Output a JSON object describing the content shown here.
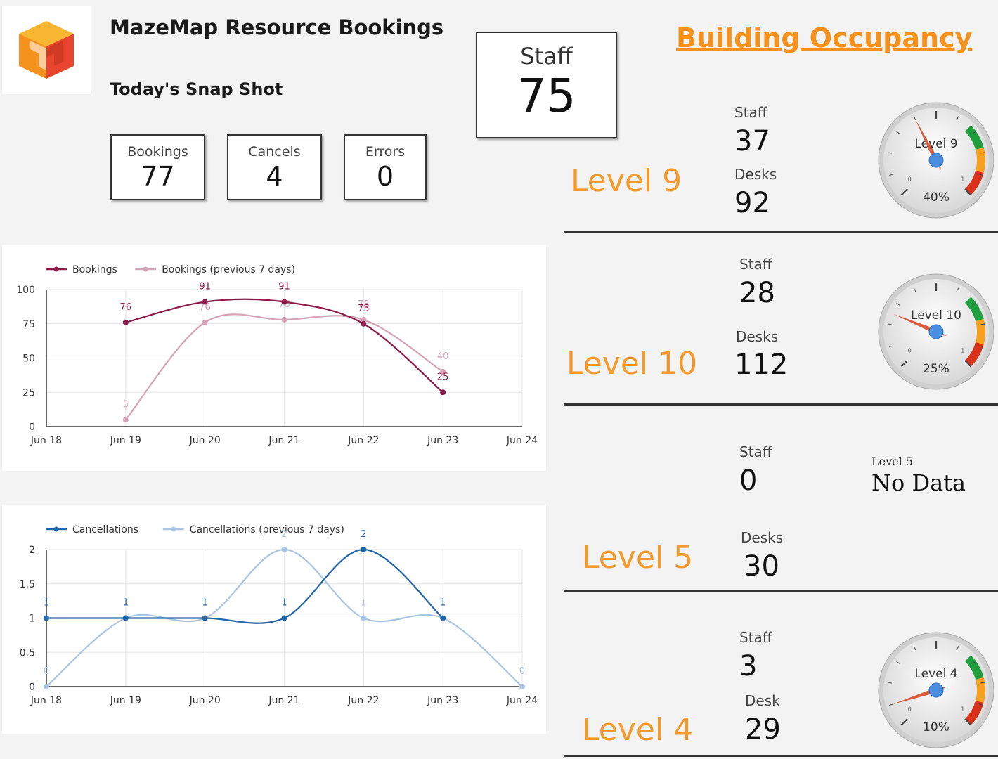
{
  "header": {
    "title": "MazeMap Resource Bookings",
    "subtitle": "Today's Snap Shot",
    "brand_colors": [
      "#f5921e",
      "#e8452e",
      "#f7b733"
    ]
  },
  "kpis": {
    "bookings": {
      "label": "Bookings",
      "value": "77"
    },
    "cancels": {
      "label": "Cancels",
      "value": "4"
    },
    "errors": {
      "label": "Errors",
      "value": "0"
    },
    "staff": {
      "label": "Staff",
      "value": "75"
    }
  },
  "occupancy": {
    "title": "Building Occupancy",
    "levels": [
      {
        "name": "Level 9",
        "staff_label": "Staff",
        "staff": "37",
        "desks_label": "Desks",
        "desks": "92",
        "gauge_label": "Level 9",
        "percent_label": "40%",
        "percent": 0.4
      },
      {
        "name": "Level 10",
        "staff_label": "Staff",
        "staff": "28",
        "desks_label": "Desks",
        "desks": "112",
        "gauge_label": "Level 10",
        "percent_label": "25%",
        "percent": 0.25
      },
      {
        "name": "Level 5",
        "staff_label": "Staff",
        "staff": "0",
        "desks_label": "Desks",
        "desks": "30",
        "no_data_label": "Level 5",
        "no_data_text": "No Data"
      },
      {
        "name": "Level 4",
        "staff_label": "Staff",
        "staff": "3",
        "desks_label": "Desk",
        "desks": "29",
        "gauge_label": "Level 4",
        "percent_label": "10%",
        "percent": 0.1
      }
    ]
  },
  "chart_data": [
    {
      "type": "line",
      "x": [
        "Jun 18",
        "Jun 19",
        "Jun 20",
        "Jun 21",
        "Jun 22",
        "Jun 23",
        "Jun 24"
      ],
      "ylim": [
        0,
        100
      ],
      "yticks": [
        "0",
        "25",
        "50",
        "75",
        "100"
      ],
      "grid": true,
      "legend": "top-left",
      "series": [
        {
          "name": "Bookings",
          "color": "#8b1c4a",
          "values": [
            null,
            76,
            91,
            91,
            75,
            25,
            null
          ],
          "labels": [
            "",
            "76",
            "91",
            "91",
            "75",
            "25",
            ""
          ]
        },
        {
          "name": "Bookings (previous 7 days)",
          "color": "#d4a3b6",
          "values": [
            null,
            5,
            76,
            78,
            78,
            40,
            null
          ],
          "labels": [
            "",
            "5",
            "76",
            "78",
            "78",
            "40",
            ""
          ]
        }
      ]
    },
    {
      "type": "line",
      "x": [
        "Jun 18",
        "Jun 19",
        "Jun 20",
        "Jun 21",
        "Jun 22",
        "Jun 23",
        "Jun 24"
      ],
      "ylim": [
        0,
        2
      ],
      "yticks": [
        "0",
        "0.5",
        "1",
        "1.5",
        "2"
      ],
      "grid": true,
      "legend": "top-left",
      "series": [
        {
          "name": "Cancellations",
          "color": "#2266aa",
          "values": [
            1,
            1,
            1,
            1,
            2,
            1,
            null
          ],
          "labels": [
            "1",
            "1",
            "1",
            "1",
            "2",
            "1",
            ""
          ]
        },
        {
          "name": "Cancellations (previous 7 days)",
          "color": "#a9c5e2",
          "values": [
            0,
            1,
            1,
            2,
            1,
            1,
            0
          ],
          "labels": [
            "0",
            "1",
            "1",
            "2",
            "1",
            "1",
            "0"
          ]
        }
      ]
    }
  ]
}
